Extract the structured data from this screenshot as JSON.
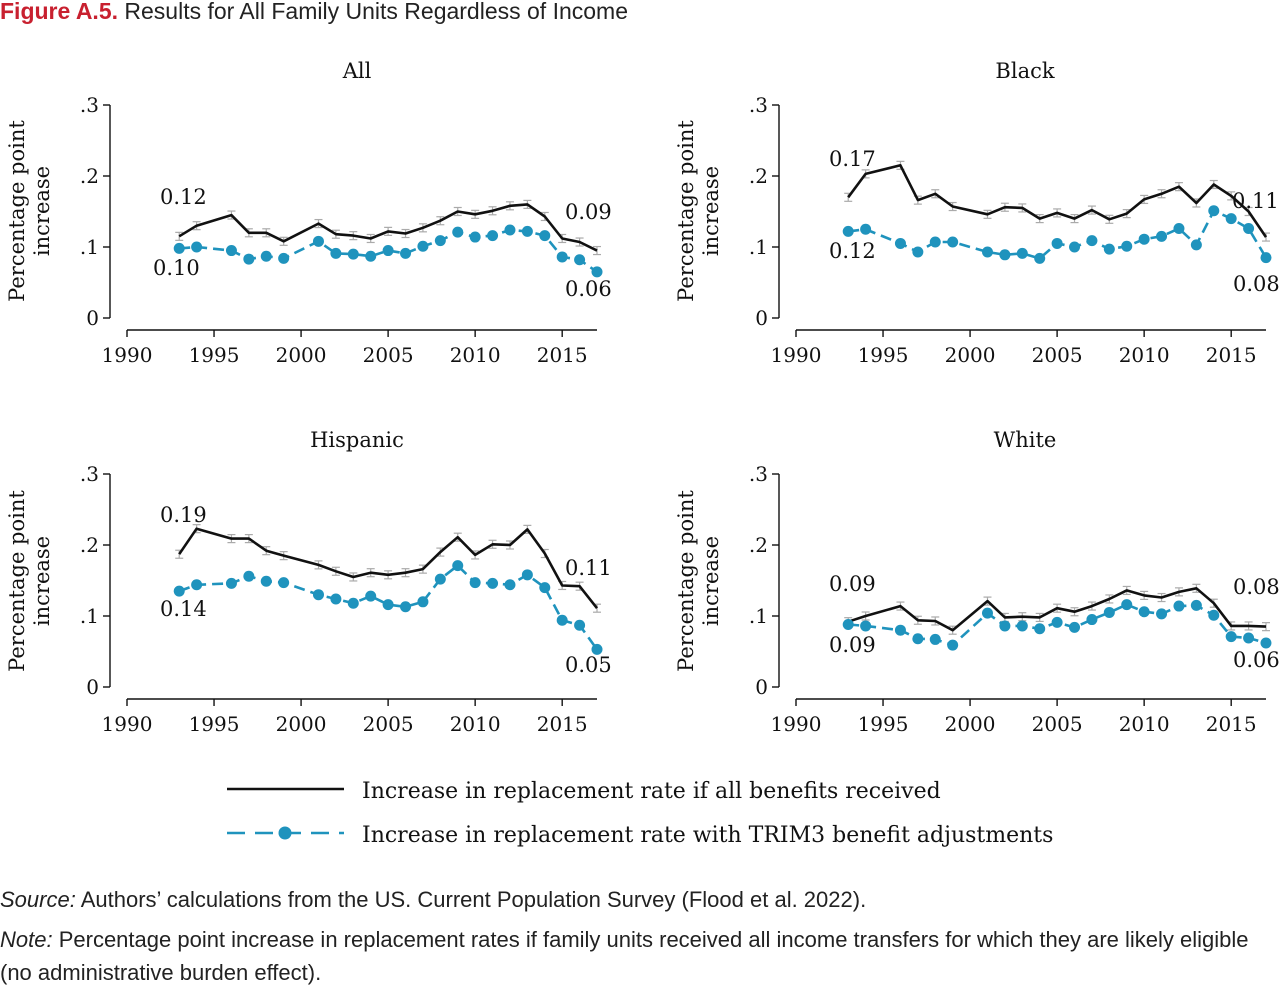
{
  "figure": {
    "label": "Figure A.5.",
    "title": "Results for All Family Units Regardless of Income",
    "source_label": "Source:",
    "source_text": " Authors’ calculations from the US. Current Population Survey (Flood et al. 2022).",
    "note_label": "Note:",
    "note_text": " Percentage point increase in replacement rates if family units received all income transfers for which they are likely eligible (no administrative burden effect)."
  },
  "colors": {
    "all_benefits": "#111111",
    "trim3": "#1f93bd",
    "error_bar": "#aaaaaa",
    "figure_label": "#c8202f"
  },
  "legend": [
    {
      "label": "Increase in replacement rate if all benefits received",
      "style": "solid"
    },
    {
      "label": "Increase in replacement rate with TRIM3 benefit adjustments",
      "style": "dashed-dots"
    }
  ],
  "chart_data": [
    {
      "type": "line",
      "title": "All",
      "ylabel": "Percentage point increase",
      "ylim": [
        0,
        0.3
      ],
      "xlim": [
        1990,
        2017
      ],
      "xticks": [
        1990,
        1995,
        2000,
        2005,
        2010,
        2015
      ],
      "yticks": [
        0,
        0.1,
        0.2,
        0.3
      ],
      "ytick_labels": [
        "0",
        ".1",
        ".2",
        ".3"
      ],
      "series": [
        {
          "key": "all_benefits",
          "x": [
            1993,
            1994,
            1996,
            1997,
            1998,
            1999,
            2001,
            2002,
            2003,
            2004,
            2005,
            2006,
            2007,
            2008,
            2009,
            2010,
            2011,
            2012,
            2013,
            2014,
            2015,
            2016,
            2017
          ],
          "y": [
            0.115,
            0.13,
            0.145,
            0.12,
            0.12,
            0.108,
            0.133,
            0.118,
            0.116,
            0.112,
            0.122,
            0.119,
            0.127,
            0.137,
            0.15,
            0.146,
            0.151,
            0.158,
            0.16,
            0.143,
            0.112,
            0.107,
            0.095
          ]
        },
        {
          "key": "trim3",
          "x": [
            1993,
            1994,
            1996,
            1997,
            1998,
            1999,
            2001,
            2002,
            2003,
            2004,
            2005,
            2006,
            2007,
            2008,
            2009,
            2010,
            2011,
            2012,
            2013,
            2014,
            2015,
            2016,
            2017
          ],
          "y": [
            0.098,
            0.1,
            0.095,
            0.083,
            0.087,
            0.084,
            0.108,
            0.091,
            0.09,
            0.087,
            0.095,
            0.091,
            0.101,
            0.109,
            0.121,
            0.114,
            0.116,
            0.124,
            0.122,
            0.116,
            0.086,
            0.082,
            0.065
          ]
        }
      ],
      "annotations": [
        {
          "text": "0.12"
        },
        {
          "text": "0.10"
        },
        {
          "text": "0.09"
        },
        {
          "text": "0.06"
        }
      ]
    },
    {
      "type": "line",
      "title": "Black",
      "ylabel": "Percentage point increase",
      "ylim": [
        0,
        0.3
      ],
      "xlim": [
        1990,
        2017
      ],
      "xticks": [
        1990,
        1995,
        2000,
        2005,
        2010,
        2015
      ],
      "yticks": [
        0,
        0.1,
        0.2,
        0.3
      ],
      "ytick_labels": [
        "0",
        ".1",
        ".2",
        ".3"
      ],
      "series": [
        {
          "key": "all_benefits",
          "x": [
            1993,
            1994,
            1996,
            1997,
            1998,
            1999,
            2001,
            2002,
            2003,
            2004,
            2005,
            2006,
            2007,
            2008,
            2009,
            2010,
            2011,
            2012,
            2013,
            2014,
            2015,
            2016,
            2017
          ],
          "y": [
            0.17,
            0.203,
            0.215,
            0.166,
            0.175,
            0.157,
            0.146,
            0.156,
            0.155,
            0.14,
            0.148,
            0.14,
            0.152,
            0.139,
            0.147,
            0.167,
            0.175,
            0.185,
            0.162,
            0.188,
            0.172,
            0.15,
            0.114
          ]
        },
        {
          "key": "trim3",
          "x": [
            1993,
            1994,
            1996,
            1997,
            1998,
            1999,
            2001,
            2002,
            2003,
            2004,
            2005,
            2006,
            2007,
            2008,
            2009,
            2010,
            2011,
            2012,
            2013,
            2014,
            2015,
            2016,
            2017
          ],
          "y": [
            0.122,
            0.125,
            0.105,
            0.093,
            0.107,
            0.107,
            0.093,
            0.089,
            0.091,
            0.084,
            0.105,
            0.1,
            0.109,
            0.097,
            0.101,
            0.111,
            0.115,
            0.126,
            0.103,
            0.151,
            0.14,
            0.126,
            0.085
          ]
        }
      ],
      "annotations": [
        {
          "text": "0.17"
        },
        {
          "text": "0.12"
        },
        {
          "text": "0.11"
        },
        {
          "text": "0.08"
        }
      ]
    },
    {
      "type": "line",
      "title": "Hispanic",
      "ylabel": "Percentage point increase",
      "ylim": [
        0,
        0.3
      ],
      "xlim": [
        1990,
        2017
      ],
      "xticks": [
        1990,
        1995,
        2000,
        2005,
        2010,
        2015
      ],
      "yticks": [
        0,
        0.1,
        0.2,
        0.3
      ],
      "ytick_labels": [
        "0",
        ".1",
        ".2",
        ".3"
      ],
      "series": [
        {
          "key": "all_benefits",
          "x": [
            1993,
            1994,
            1996,
            1997,
            1998,
            1999,
            2001,
            2002,
            2003,
            2004,
            2005,
            2006,
            2007,
            2008,
            2009,
            2010,
            2011,
            2012,
            2013,
            2014,
            2015,
            2016,
            2017
          ],
          "y": [
            0.187,
            0.223,
            0.209,
            0.209,
            0.192,
            0.185,
            0.172,
            0.163,
            0.155,
            0.161,
            0.158,
            0.161,
            0.166,
            0.19,
            0.211,
            0.186,
            0.201,
            0.2,
            0.222,
            0.188,
            0.143,
            0.142,
            0.111
          ]
        },
        {
          "key": "trim3",
          "x": [
            1993,
            1994,
            1996,
            1997,
            1998,
            1999,
            2001,
            2002,
            2003,
            2004,
            2005,
            2006,
            2007,
            2008,
            2009,
            2010,
            2011,
            2012,
            2013,
            2014,
            2015,
            2016,
            2017
          ],
          "y": [
            0.135,
            0.144,
            0.146,
            0.156,
            0.149,
            0.147,
            0.13,
            0.124,
            0.118,
            0.128,
            0.116,
            0.113,
            0.12,
            0.152,
            0.171,
            0.147,
            0.146,
            0.144,
            0.158,
            0.14,
            0.094,
            0.087,
            0.053
          ]
        }
      ],
      "annotations": [
        {
          "text": "0.19"
        },
        {
          "text": "0.14"
        },
        {
          "text": "0.11"
        },
        {
          "text": "0.05"
        }
      ]
    },
    {
      "type": "line",
      "title": "White",
      "ylabel": "Percentage point increase",
      "ylim": [
        0,
        0.3
      ],
      "xlim": [
        1990,
        2017
      ],
      "xticks": [
        1990,
        1995,
        2000,
        2005,
        2010,
        2015
      ],
      "yticks": [
        0,
        0.1,
        0.2,
        0.3
      ],
      "ytick_labels": [
        "0",
        ".1",
        ".2",
        ".3"
      ],
      "series": [
        {
          "key": "all_benefits",
          "x": [
            1993,
            1994,
            1996,
            1997,
            1998,
            1999,
            2001,
            2002,
            2003,
            2004,
            2005,
            2006,
            2007,
            2008,
            2009,
            2010,
            2011,
            2012,
            2013,
            2014,
            2015,
            2016,
            2017
          ],
          "y": [
            0.092,
            0.1,
            0.114,
            0.094,
            0.093,
            0.08,
            0.121,
            0.098,
            0.099,
            0.098,
            0.111,
            0.106,
            0.114,
            0.124,
            0.136,
            0.129,
            0.126,
            0.134,
            0.139,
            0.118,
            0.086,
            0.086,
            0.085
          ]
        },
        {
          "key": "trim3",
          "x": [
            1993,
            1994,
            1996,
            1997,
            1998,
            1999,
            2001,
            2002,
            2003,
            2004,
            2005,
            2006,
            2007,
            2008,
            2009,
            2010,
            2011,
            2012,
            2013,
            2014,
            2015,
            2016,
            2017
          ],
          "y": [
            0.088,
            0.086,
            0.08,
            0.068,
            0.067,
            0.059,
            0.104,
            0.086,
            0.086,
            0.082,
            0.091,
            0.084,
            0.095,
            0.105,
            0.116,
            0.106,
            0.103,
            0.114,
            0.115,
            0.101,
            0.071,
            0.069,
            0.062
          ]
        }
      ],
      "annotations": [
        {
          "text": "0.09"
        },
        {
          "text": "0.09"
        },
        {
          "text": "0.08"
        },
        {
          "text": "0.06"
        }
      ]
    }
  ]
}
